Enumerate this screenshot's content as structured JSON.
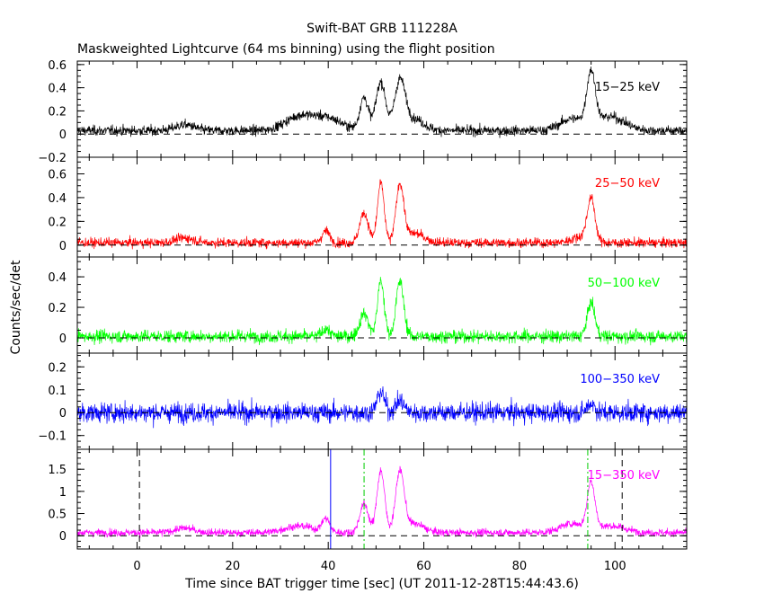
{
  "chart_data": {
    "type": "line",
    "title": "Swift-BAT GRB 111228A",
    "subtitle": "Maskweighted Lightcurve (64 ms binning) using the flight position",
    "xlabel": "Time since BAT trigger time [sec] (UT 2011-12-28T15:44:43.6)",
    "ylabel": "Counts/sec/det",
    "xlim": [
      -12.5,
      115
    ],
    "x_ticks": [
      0,
      20,
      40,
      60,
      80,
      100
    ],
    "x_tick_labels": [
      "0",
      "20",
      "40",
      "60",
      "80",
      "100"
    ],
    "binning_sec": 0.064,
    "panels": [
      {
        "band": "15-25 keV",
        "label": "15−25 keV",
        "color": "#000000",
        "ylim": [
          -0.2,
          0.63
        ],
        "y_ticks": [
          -0.2,
          0,
          0.2,
          0.4,
          0.6
        ],
        "y_tick_labels": [
          "−0.2",
          "0",
          "0.2",
          "0.4",
          "0.6"
        ],
        "noise": 0.03,
        "baseline": 0.03,
        "peaks": [
          {
            "t": 10,
            "amp": 0.05,
            "w": 2
          },
          {
            "t": 34,
            "amp": 0.12,
            "w": 3
          },
          {
            "t": 40,
            "amp": 0.1,
            "w": 3
          },
          {
            "t": 47.5,
            "amp": 0.28,
            "w": 0.9
          },
          {
            "t": 51,
            "amp": 0.42,
            "w": 1.0
          },
          {
            "t": 55,
            "amp": 0.42,
            "w": 1.1
          },
          {
            "t": 58,
            "amp": 0.1,
            "w": 2
          },
          {
            "t": 91,
            "amp": 0.1,
            "w": 2.5
          },
          {
            "t": 95,
            "amp": 0.45,
            "w": 0.9
          },
          {
            "t": 99,
            "amp": 0.12,
            "w": 3
          }
        ]
      },
      {
        "band": "25-50 keV",
        "label": "25−50 keV",
        "color": "#ff0000",
        "ylim": [
          -0.1,
          0.74
        ],
        "y_ticks": [
          0,
          0.2,
          0.4,
          0.6
        ],
        "y_tick_labels": [
          "0",
          "0.2",
          "0.4",
          "0.6"
        ],
        "noise": 0.028,
        "baseline": 0.02,
        "peaks": [
          {
            "t": 10,
            "amp": 0.04,
            "w": 2
          },
          {
            "t": 39.5,
            "amp": 0.1,
            "w": 0.8
          },
          {
            "t": 47.5,
            "amp": 0.25,
            "w": 0.9
          },
          {
            "t": 51,
            "amp": 0.5,
            "w": 0.7
          },
          {
            "t": 55,
            "amp": 0.48,
            "w": 0.8
          },
          {
            "t": 58,
            "amp": 0.08,
            "w": 2
          },
          {
            "t": 95,
            "amp": 0.35,
            "w": 0.8
          },
          {
            "t": 93,
            "amp": 0.05,
            "w": 2
          }
        ]
      },
      {
        "band": "50-100 keV",
        "label": "50−100 keV",
        "color": "#00ff00",
        "ylim": [
          -0.1,
          0.53
        ],
        "y_ticks": [
          0,
          0.2,
          0.4
        ],
        "y_tick_labels": [
          "0",
          "0.2",
          "0.4"
        ],
        "noise": 0.03,
        "baseline": 0.01,
        "peaks": [
          {
            "t": 39.5,
            "amp": 0.05,
            "w": 0.8
          },
          {
            "t": 47.5,
            "amp": 0.15,
            "w": 0.9
          },
          {
            "t": 51,
            "amp": 0.36,
            "w": 0.7
          },
          {
            "t": 55,
            "amp": 0.36,
            "w": 0.8
          },
          {
            "t": 95,
            "amp": 0.22,
            "w": 0.8
          }
        ]
      },
      {
        "band": "100-350 keV",
        "label": "100−350 keV",
        "color": "#0000ff",
        "ylim": [
          -0.16,
          0.26
        ],
        "y_ticks": [
          -0.1,
          0,
          0.1,
          0.2
        ],
        "y_tick_labels": [
          "−0.1",
          "0",
          "0.1",
          "0.2"
        ],
        "noise": 0.03,
        "baseline": 0.0,
        "peaks": [
          {
            "t": 51,
            "amp": 0.09,
            "w": 0.8
          },
          {
            "t": 55,
            "amp": 0.05,
            "w": 0.9
          },
          {
            "t": 95,
            "amp": 0.04,
            "w": 0.8
          }
        ]
      },
      {
        "band": "15-350 keV",
        "label": "15−350 keV",
        "color": "#ff00ff",
        "ylim": [
          -0.3,
          1.95
        ],
        "y_ticks": [
          0,
          0.5,
          1,
          1.5
        ],
        "y_tick_labels": [
          "0",
          "0.5",
          "1",
          "1.5"
        ],
        "noise": 0.06,
        "baseline": 0.07,
        "peaks": [
          {
            "t": 10,
            "amp": 0.1,
            "w": 2
          },
          {
            "t": 34,
            "amp": 0.15,
            "w": 3
          },
          {
            "t": 39.5,
            "amp": 0.3,
            "w": 0.8
          },
          {
            "t": 47.5,
            "amp": 0.65,
            "w": 0.9
          },
          {
            "t": 51,
            "amp": 1.4,
            "w": 0.8
          },
          {
            "t": 55,
            "amp": 1.35,
            "w": 0.9
          },
          {
            "t": 58,
            "amp": 0.2,
            "w": 2
          },
          {
            "t": 91,
            "amp": 0.2,
            "w": 2.5
          },
          {
            "t": 95,
            "amp": 1.05,
            "w": 0.8
          },
          {
            "t": 99,
            "amp": 0.15,
            "w": 3
          }
        ],
        "vlines": [
          {
            "t": 0.5,
            "color": "#000000",
            "dash": "7,5"
          },
          {
            "t": 101.5,
            "color": "#000000",
            "dash": "7,5"
          },
          {
            "t": 40.5,
            "color": "#0000ff",
            "dash": ""
          },
          {
            "t": 47.5,
            "color": "#00cc00",
            "dash": "7,3,2,3"
          },
          {
            "t": 94.3,
            "color": "#00cc00",
            "dash": "7,3,2,3"
          }
        ]
      }
    ]
  }
}
